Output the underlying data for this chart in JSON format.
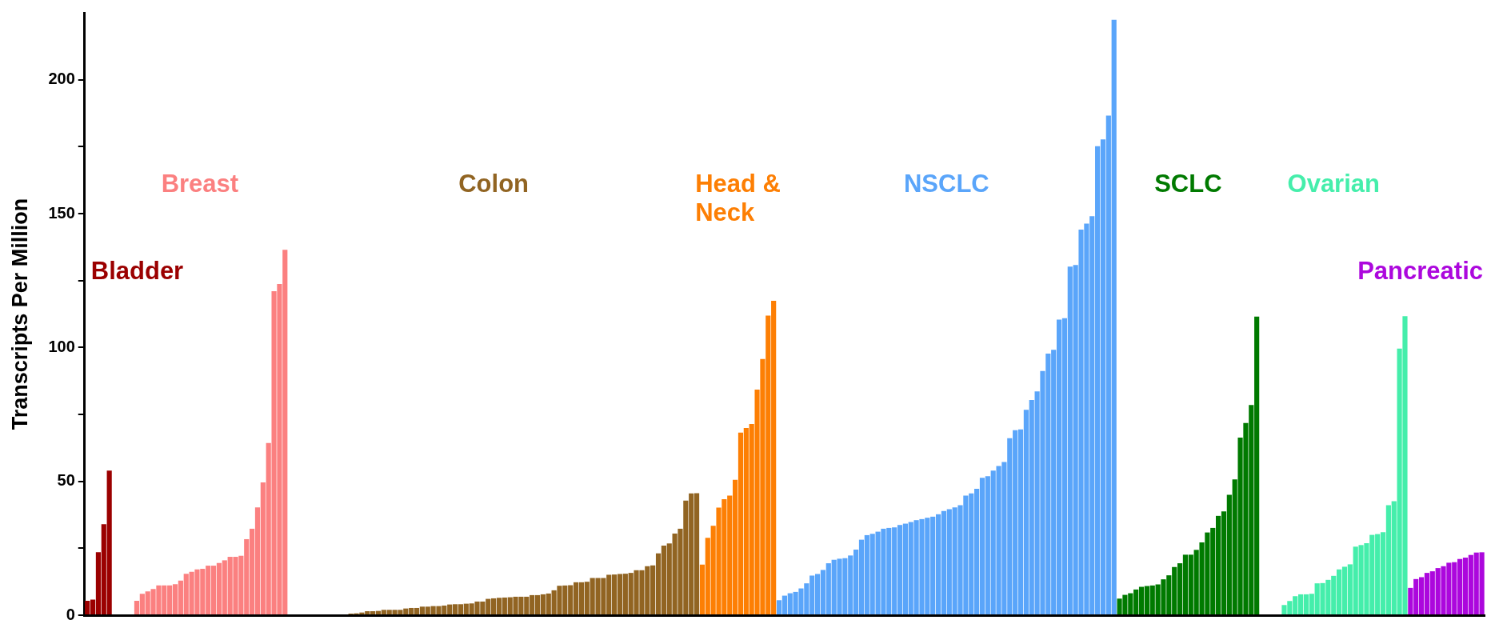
{
  "chart_data": {
    "type": "bar",
    "ylabel": "Transcripts Per Million",
    "tick_labels": "y",
    "legend": false,
    "ylim": [
      0,
      225
    ],
    "yticks": [
      0,
      {
        "value": 25,
        "label": null
      },
      50,
      {
        "value": 75,
        "label": null
      },
      100,
      {
        "value": 125,
        "label": null
      },
      150,
      {
        "value": 175,
        "label": null
      },
      200
    ],
    "categories": [
      null,
      null,
      null,
      null,
      null,
      null,
      null,
      null,
      null,
      null,
      null,
      null,
      null,
      null,
      null,
      null,
      null,
      null,
      null,
      null,
      null,
      null,
      null,
      null,
      null,
      null,
      null,
      null,
      null,
      null,
      null,
      null,
      null,
      null,
      null,
      null,
      null,
      null,
      null,
      null,
      null,
      null,
      null,
      null,
      null,
      null,
      null,
      null,
      null,
      null,
      null,
      null,
      null,
      null,
      null,
      null,
      null,
      null,
      null,
      null,
      null,
      null,
      null,
      null,
      null,
      null,
      null,
      null,
      null,
      null,
      null,
      null,
      null,
      null,
      null,
      null,
      null,
      null,
      null,
      null,
      null,
      null,
      null,
      null,
      null,
      null,
      null,
      null,
      null,
      null,
      null,
      null,
      null,
      null,
      null,
      null,
      null,
      null,
      null,
      null,
      null,
      null,
      null,
      null,
      null,
      null,
      null,
      null,
      null,
      null,
      null,
      null,
      null,
      null,
      null,
      null,
      null,
      null,
      null,
      null,
      null,
      null,
      null,
      null,
      null,
      null,
      null,
      null,
      null,
      null,
      null,
      null,
      null,
      null,
      null,
      null,
      null,
      null,
      null,
      null,
      null,
      null,
      null,
      null,
      null,
      null,
      null,
      null,
      null,
      null,
      null,
      null,
      null,
      null,
      null,
      null,
      null,
      null,
      null,
      null,
      null,
      null,
      null,
      null,
      null,
      null,
      null,
      null,
      null,
      null,
      null,
      null,
      null,
      null,
      null,
      null,
      null,
      null,
      null,
      null,
      null,
      null,
      null,
      null,
      null,
      null,
      null,
      null,
      null,
      null,
      null,
      null,
      null,
      null,
      null,
      null,
      null,
      null,
      null,
      null,
      null,
      null,
      null,
      null,
      null,
      null,
      null,
      null,
      null,
      null,
      null,
      null,
      null,
      null,
      null,
      null,
      null,
      null,
      null,
      null,
      null,
      null,
      null,
      null,
      null,
      null,
      null,
      null,
      null,
      null,
      null,
      null,
      null,
      null,
      null,
      null,
      null,
      null,
      null,
      null,
      null,
      null,
      null,
      null,
      null,
      null,
      null,
      null,
      null,
      null,
      null,
      null,
      null,
      null,
      null
    ],
    "series": [
      {
        "name": "Bladder",
        "color": "#9b0000",
        "values": [
          5.4,
          5.8,
          23.5,
          34,
          54,
          null,
          null,
          null,
          null,
          null,
          null,
          null,
          null,
          null,
          null,
          null,
          null,
          null,
          null,
          null,
          null,
          null,
          null,
          null,
          null,
          null,
          null,
          null,
          null,
          null,
          null,
          null,
          null,
          null,
          null,
          null,
          null,
          null,
          null,
          null,
          null,
          null,
          null,
          null,
          null,
          null,
          null,
          null,
          null,
          null,
          null,
          null,
          null,
          null,
          null,
          null,
          null,
          null,
          null,
          null,
          null,
          null,
          null,
          null,
          null,
          null,
          null,
          null,
          null,
          null,
          null,
          null,
          null,
          null,
          null,
          null,
          null,
          null,
          null,
          null,
          null,
          null,
          null,
          null,
          null,
          null,
          null,
          null,
          null,
          null,
          null,
          null,
          null,
          null,
          null,
          null,
          null,
          null,
          null,
          null,
          null,
          null,
          null,
          null,
          null,
          null,
          null,
          null,
          null,
          null,
          null,
          null,
          null,
          null,
          null,
          null,
          null,
          null,
          null,
          null,
          null,
          null,
          null,
          null,
          null,
          null,
          null,
          null,
          null,
          null,
          null,
          null,
          null,
          null,
          null,
          null,
          null,
          null,
          null,
          null,
          null,
          null,
          null,
          null,
          null,
          null,
          null,
          null,
          null,
          null,
          null,
          null,
          null,
          null,
          null,
          null,
          null,
          null,
          null,
          null,
          null,
          null,
          null,
          null,
          null,
          null,
          null,
          null,
          null,
          null,
          null,
          null,
          null,
          null,
          null,
          null,
          null,
          null,
          null,
          null,
          null,
          null,
          null,
          null,
          null,
          null,
          null,
          null,
          null,
          null,
          null,
          null,
          null,
          null,
          null,
          null,
          null,
          null,
          null,
          null,
          null,
          null,
          null,
          null,
          null,
          null,
          null,
          null,
          null,
          null,
          null,
          null,
          null,
          null,
          null,
          null,
          null,
          null,
          null,
          null,
          null,
          null,
          null,
          null,
          null,
          null,
          null,
          null,
          null,
          null,
          null,
          null,
          null,
          null,
          null,
          null,
          null,
          null,
          null,
          null,
          null,
          null,
          null,
          null,
          null,
          null,
          null,
          null,
          null,
          null,
          null,
          null,
          null,
          null,
          null
        ]
      },
      {
        "name": "Breast",
        "color": "#fb8080",
        "values": [
          null,
          null,
          null,
          null,
          null,
          0,
          0,
          0,
          0.3,
          5.4,
          8,
          8.9,
          9.8,
          11.1,
          11.1,
          11.1,
          11.6,
          12.9,
          15.5,
          16.2,
          17.1,
          17.3,
          18.5,
          18.5,
          19.5,
          20.5,
          21.8,
          21.8,
          22.2,
          28.4,
          32.3,
          40.3,
          49.6,
          64.3,
          121,
          123.7,
          136.5,
          null,
          null,
          null,
          null,
          null,
          null,
          null,
          null,
          null,
          null,
          null,
          null,
          null,
          null,
          null,
          null,
          null,
          null,
          null,
          null,
          null,
          null,
          null,
          null,
          null,
          null,
          null,
          null,
          null,
          null,
          null,
          null,
          null,
          null,
          null,
          null,
          null,
          null,
          null,
          null,
          null,
          null,
          null,
          null,
          null,
          null,
          null,
          null,
          null,
          null,
          null,
          null,
          null,
          null,
          null,
          null,
          null,
          null,
          null,
          null,
          null,
          null,
          null,
          null,
          null,
          null,
          null,
          null,
          null,
          null,
          null,
          null,
          null,
          null,
          null,
          null,
          null,
          null,
          null,
          null,
          null,
          null,
          null,
          null,
          null,
          null,
          null,
          null,
          null,
          null,
          null,
          null,
          null,
          null,
          null,
          null,
          null,
          null,
          null,
          null,
          null,
          null,
          null,
          null,
          null,
          null,
          null,
          null,
          null,
          null,
          null,
          null,
          null,
          null,
          null,
          null,
          null,
          null,
          null,
          null,
          null,
          null,
          null,
          null,
          null,
          null,
          null,
          null,
          null,
          null,
          null,
          null,
          null,
          null,
          null,
          null,
          null,
          null,
          null,
          null,
          null,
          null,
          null,
          null,
          null,
          null,
          null,
          null,
          null,
          null,
          null,
          null,
          null,
          null,
          null,
          null,
          null,
          null,
          null,
          null,
          null,
          null,
          null,
          null,
          null,
          null,
          null,
          null,
          null,
          null,
          null,
          null,
          null,
          null,
          null,
          null,
          null,
          null,
          null,
          null,
          null,
          null,
          null,
          null,
          null,
          null,
          null,
          null,
          null,
          null,
          null,
          null,
          null,
          null,
          null,
          null,
          null,
          null,
          null,
          null,
          null,
          null,
          null,
          null,
          null,
          null,
          null,
          null,
          null,
          null,
          null,
          null,
          null,
          null,
          null,
          null,
          null,
          null
        ]
      },
      {
        "name": "Colon",
        "color": "#916422",
        "values": [
          null,
          null,
          null,
          null,
          null,
          null,
          null,
          null,
          null,
          null,
          null,
          null,
          null,
          null,
          null,
          null,
          null,
          null,
          null,
          null,
          null,
          null,
          null,
          null,
          null,
          null,
          null,
          null,
          null,
          null,
          null,
          null,
          null,
          null,
          null,
          null,
          null,
          0,
          0,
          0,
          0,
          0,
          0,
          0,
          0,
          0,
          null,
          null,
          0.6,
          0.7,
          1,
          1.5,
          1.5,
          1.6,
          2,
          2,
          2,
          2,
          2.5,
          2.7,
          2.7,
          3.2,
          3.2,
          3.4,
          3.4,
          3.6,
          4,
          4.1,
          4.1,
          4.3,
          4.4,
          5.1,
          5.1,
          6.1,
          6.3,
          6.5,
          6.6,
          6.7,
          6.9,
          6.9,
          6.9,
          7.5,
          7.5,
          7.8,
          8.1,
          9.3,
          11,
          11.1,
          11.2,
          12.3,
          12.3,
          12.5,
          13.9,
          13.9,
          13.9,
          15.1,
          15.2,
          15.4,
          15.5,
          15.8,
          16.8,
          16.8,
          18.3,
          18.6,
          23.1,
          26,
          26.8,
          30.5,
          32.3,
          42.8,
          45.5,
          45.6,
          null,
          null,
          null,
          null,
          null,
          null,
          null,
          null,
          null,
          null,
          null,
          null,
          null,
          null,
          null,
          null,
          null,
          null,
          null,
          null,
          null,
          null,
          null,
          null,
          null,
          null,
          null,
          null,
          null,
          null,
          null,
          null,
          null,
          null,
          null,
          null,
          null,
          null,
          null,
          null,
          null,
          null,
          null,
          null,
          null,
          null,
          null,
          null,
          null,
          null,
          null,
          null,
          null,
          null,
          null,
          null,
          null,
          null,
          null,
          null,
          null,
          null,
          null,
          null,
          null,
          null,
          null,
          null,
          null,
          null,
          null,
          null,
          null,
          null,
          null,
          null,
          null,
          null,
          null,
          null,
          null,
          null,
          null,
          null,
          null,
          null,
          null,
          null,
          null,
          null,
          null,
          null,
          null,
          null,
          null,
          null,
          null,
          null,
          null,
          null,
          null,
          null,
          null,
          null,
          null,
          null,
          null,
          null,
          null,
          null,
          null,
          null,
          null,
          null,
          null,
          null,
          null,
          null,
          null,
          null,
          null,
          null,
          null,
          null,
          null,
          null,
          null,
          null,
          null,
          null,
          null,
          null,
          null,
          null,
          null,
          null,
          null,
          null,
          null,
          null,
          null,
          null,
          null
        ]
      },
      {
        "name": "Head & Neck",
        "color": "#fd7f04",
        "values": [
          null,
          null,
          null,
          null,
          null,
          null,
          null,
          null,
          null,
          null,
          null,
          null,
          null,
          null,
          null,
          null,
          null,
          null,
          null,
          null,
          null,
          null,
          null,
          null,
          null,
          null,
          null,
          null,
          null,
          null,
          null,
          null,
          null,
          null,
          null,
          null,
          null,
          null,
          null,
          null,
          null,
          null,
          null,
          null,
          null,
          null,
          null,
          null,
          null,
          null,
          null,
          null,
          null,
          null,
          null,
          null,
          null,
          null,
          null,
          null,
          null,
          null,
          null,
          null,
          null,
          null,
          null,
          null,
          null,
          null,
          null,
          null,
          null,
          null,
          null,
          null,
          null,
          null,
          null,
          null,
          null,
          null,
          null,
          null,
          null,
          null,
          null,
          null,
          null,
          null,
          null,
          null,
          null,
          null,
          null,
          null,
          null,
          null,
          null,
          null,
          null,
          null,
          null,
          null,
          null,
          null,
          null,
          null,
          null,
          null,
          null,
          null,
          18.9,
          28.9,
          33.4,
          40.2,
          43.3,
          44.7,
          50.6,
          68.2,
          69.9,
          71.4,
          84.3,
          95.7,
          111.9,
          117.4,
          null,
          null,
          null,
          null,
          null,
          null,
          null,
          null,
          null,
          null,
          null,
          null,
          null,
          null,
          null,
          null,
          null,
          null,
          null,
          null,
          null,
          null,
          null,
          null,
          null,
          null,
          null,
          null,
          null,
          null,
          null,
          null,
          null,
          null,
          null,
          null,
          null,
          null,
          null,
          null,
          null,
          null,
          null,
          null,
          null,
          null,
          null,
          null,
          null,
          null,
          null,
          null,
          null,
          null,
          null,
          null,
          null,
          null,
          null,
          null,
          null,
          null,
          null,
          null,
          null,
          null,
          null,
          null,
          null,
          null,
          null,
          null,
          null,
          null,
          null,
          null,
          null,
          null,
          null,
          null,
          null,
          null,
          null,
          null,
          null,
          null,
          null,
          null,
          null,
          null,
          null,
          null,
          null,
          null,
          null,
          null,
          null,
          null,
          null,
          null,
          null,
          null,
          null,
          null,
          null,
          null,
          null,
          null,
          null,
          null,
          null,
          null,
          null,
          null,
          null,
          null,
          null,
          null,
          null,
          null,
          null,
          null,
          null,
          null,
          null,
          null,
          null,
          null,
          null
        ]
      },
      {
        "name": "NSCLC",
        "color": "#5aa5fa",
        "values": [
          null,
          null,
          null,
          null,
          null,
          null,
          null,
          null,
          null,
          null,
          null,
          null,
          null,
          null,
          null,
          null,
          null,
          null,
          null,
          null,
          null,
          null,
          null,
          null,
          null,
          null,
          null,
          null,
          null,
          null,
          null,
          null,
          null,
          null,
          null,
          null,
          null,
          null,
          null,
          null,
          null,
          null,
          null,
          null,
          null,
          null,
          null,
          null,
          null,
          null,
          null,
          null,
          null,
          null,
          null,
          null,
          null,
          null,
          null,
          null,
          null,
          null,
          null,
          null,
          null,
          null,
          null,
          null,
          null,
          null,
          null,
          null,
          null,
          null,
          null,
          null,
          null,
          null,
          null,
          null,
          null,
          null,
          null,
          null,
          null,
          null,
          null,
          null,
          null,
          null,
          null,
          null,
          null,
          null,
          null,
          null,
          null,
          null,
          null,
          null,
          null,
          null,
          null,
          null,
          null,
          null,
          null,
          null,
          null,
          null,
          null,
          null,
          null,
          null,
          null,
          null,
          null,
          null,
          null,
          null,
          null,
          null,
          null,
          null,
          null,
          null,
          5.6,
          7.3,
          8.2,
          8.7,
          10,
          11.9,
          14.8,
          15.4,
          16.9,
          19.4,
          20.7,
          21.1,
          21.3,
          22.3,
          24.5,
          28.2,
          29.9,
          30.4,
          31.2,
          32.3,
          32.6,
          32.8,
          33.7,
          34.2,
          34.8,
          35.5,
          35.9,
          36.4,
          36.8,
          37.7,
          38.9,
          39.6,
          40.3,
          41.1,
          44.7,
          45.5,
          47.2,
          51.3,
          51.9,
          54,
          55.7,
          57.2,
          66.1,
          69.1,
          69.4,
          76.7,
          80.4,
          83.6,
          91.2,
          97.7,
          99.1,
          110.4,
          110.9,
          130.2,
          130.8,
          144,
          146.3,
          149,
          175.2,
          177.7,
          186.6,
          222.4,
          null,
          null,
          null,
          null,
          null,
          null,
          null,
          null,
          null,
          null,
          null,
          null,
          null,
          null,
          null,
          null,
          null,
          null,
          null,
          null,
          null,
          null,
          null,
          null,
          null,
          null,
          null,
          null,
          null,
          null,
          null,
          null,
          null,
          null,
          null,
          null,
          null,
          null,
          null,
          null,
          null,
          null,
          null,
          null,
          null,
          null,
          null,
          null,
          null,
          null,
          null,
          null,
          null,
          null,
          null,
          null,
          null,
          null,
          null,
          null,
          null,
          null,
          null,
          null,
          null,
          null,
          null
        ]
      },
      {
        "name": "SCLC",
        "color": "#007a00",
        "values": [
          null,
          null,
          null,
          null,
          null,
          null,
          null,
          null,
          null,
          null,
          null,
          null,
          null,
          null,
          null,
          null,
          null,
          null,
          null,
          null,
          null,
          null,
          null,
          null,
          null,
          null,
          null,
          null,
          null,
          null,
          null,
          null,
          null,
          null,
          null,
          null,
          null,
          null,
          null,
          null,
          null,
          null,
          null,
          null,
          null,
          null,
          null,
          null,
          null,
          null,
          null,
          null,
          null,
          null,
          null,
          null,
          null,
          null,
          null,
          null,
          null,
          null,
          null,
          null,
          null,
          null,
          null,
          null,
          null,
          null,
          null,
          null,
          null,
          null,
          null,
          null,
          null,
          null,
          null,
          null,
          null,
          null,
          null,
          null,
          null,
          null,
          null,
          null,
          null,
          null,
          null,
          null,
          null,
          null,
          null,
          null,
          null,
          null,
          null,
          null,
          null,
          null,
          null,
          null,
          null,
          null,
          null,
          null,
          null,
          null,
          null,
          null,
          null,
          null,
          null,
          null,
          null,
          null,
          null,
          null,
          null,
          null,
          null,
          null,
          null,
          null,
          null,
          null,
          null,
          null,
          null,
          null,
          null,
          null,
          null,
          null,
          null,
          null,
          null,
          null,
          null,
          null,
          null,
          null,
          null,
          null,
          null,
          null,
          null,
          null,
          null,
          null,
          null,
          null,
          null,
          null,
          null,
          null,
          null,
          null,
          null,
          null,
          null,
          null,
          null,
          null,
          null,
          null,
          null,
          null,
          null,
          null,
          null,
          null,
          null,
          null,
          null,
          null,
          null,
          null,
          null,
          null,
          null,
          null,
          null,
          null,
          null,
          null,
          6.2,
          7.6,
          8.2,
          9.6,
          10.6,
          10.9,
          11.1,
          11.5,
          13.4,
          14.9,
          18,
          19.4,
          22.6,
          22.6,
          24.4,
          27.2,
          30.9,
          32.6,
          37.1,
          38.8,
          45,
          50.7,
          66.3,
          71.8,
          78.5,
          111.5,
          null,
          null,
          null,
          null,
          null,
          null,
          null,
          null,
          null,
          null,
          null,
          null,
          null,
          null,
          null,
          null,
          null,
          null,
          null,
          null,
          null,
          null,
          null,
          null,
          null,
          null,
          null,
          null,
          null,
          null,
          null,
          null,
          null,
          null,
          null,
          null,
          null,
          null,
          null,
          null,
          null
        ]
      },
      {
        "name": "Ovarian",
        "color": "#45eeab",
        "values": [
          null,
          null,
          null,
          null,
          null,
          null,
          null,
          null,
          null,
          null,
          null,
          null,
          null,
          null,
          null,
          null,
          null,
          null,
          null,
          null,
          null,
          null,
          null,
          null,
          null,
          null,
          null,
          null,
          null,
          null,
          null,
          null,
          null,
          null,
          null,
          null,
          null,
          null,
          null,
          null,
          null,
          null,
          null,
          null,
          null,
          null,
          null,
          null,
          null,
          null,
          null,
          null,
          null,
          null,
          null,
          null,
          null,
          null,
          null,
          null,
          null,
          null,
          null,
          null,
          null,
          null,
          null,
          null,
          null,
          null,
          null,
          null,
          null,
          null,
          null,
          null,
          null,
          null,
          null,
          null,
          null,
          null,
          null,
          null,
          null,
          null,
          null,
          null,
          null,
          null,
          null,
          null,
          null,
          null,
          null,
          null,
          null,
          null,
          null,
          null,
          null,
          null,
          null,
          null,
          null,
          null,
          null,
          null,
          null,
          null,
          null,
          null,
          null,
          null,
          null,
          null,
          null,
          null,
          null,
          null,
          null,
          null,
          null,
          null,
          null,
          null,
          null,
          null,
          null,
          null,
          null,
          null,
          null,
          null,
          null,
          null,
          null,
          null,
          null,
          null,
          null,
          null,
          null,
          null,
          null,
          null,
          null,
          null,
          null,
          null,
          null,
          null,
          null,
          null,
          null,
          null,
          null,
          null,
          null,
          null,
          null,
          null,
          null,
          null,
          null,
          null,
          null,
          null,
          null,
          null,
          null,
          null,
          null,
          null,
          null,
          null,
          null,
          null,
          null,
          null,
          null,
          null,
          null,
          null,
          null,
          null,
          null,
          null,
          null,
          null,
          null,
          null,
          null,
          null,
          null,
          null,
          null,
          null,
          null,
          null,
          null,
          null,
          null,
          null,
          null,
          null,
          null,
          null,
          null,
          null,
          null,
          null,
          null,
          null,
          0,
          0,
          0.3,
          null,
          3.8,
          5.3,
          7.1,
          7.8,
          7.8,
          8,
          11.9,
          12,
          13.2,
          14.7,
          17.1,
          18.1,
          19,
          25.6,
          26.2,
          26.9,
          30,
          30.3,
          31,
          41.1,
          42.6,
          99.6,
          111.7,
          null,
          null,
          null,
          null,
          null,
          null,
          null,
          null,
          null,
          null,
          null,
          null,
          null,
          null
        ]
      },
      {
        "name": "Pancreatic",
        "color": "#ac07dd",
        "values": [
          null,
          null,
          null,
          null,
          null,
          null,
          null,
          null,
          null,
          null,
          null,
          null,
          null,
          null,
          null,
          null,
          null,
          null,
          null,
          null,
          null,
          null,
          null,
          null,
          null,
          null,
          null,
          null,
          null,
          null,
          null,
          null,
          null,
          null,
          null,
          null,
          null,
          null,
          null,
          null,
          null,
          null,
          null,
          null,
          null,
          null,
          null,
          null,
          null,
          null,
          null,
          null,
          null,
          null,
          null,
          null,
          null,
          null,
          null,
          null,
          null,
          null,
          null,
          null,
          null,
          null,
          null,
          null,
          null,
          null,
          null,
          null,
          null,
          null,
          null,
          null,
          null,
          null,
          null,
          null,
          null,
          null,
          null,
          null,
          null,
          null,
          null,
          null,
          null,
          null,
          null,
          null,
          null,
          null,
          null,
          null,
          null,
          null,
          null,
          null,
          null,
          null,
          null,
          null,
          null,
          null,
          null,
          null,
          null,
          null,
          null,
          null,
          null,
          null,
          null,
          null,
          null,
          null,
          null,
          null,
          null,
          null,
          null,
          null,
          null,
          null,
          null,
          null,
          null,
          null,
          null,
          null,
          null,
          null,
          null,
          null,
          null,
          null,
          null,
          null,
          null,
          null,
          null,
          null,
          null,
          null,
          null,
          null,
          null,
          null,
          null,
          null,
          null,
          null,
          null,
          null,
          null,
          null,
          null,
          null,
          null,
          null,
          null,
          null,
          null,
          null,
          null,
          null,
          null,
          null,
          null,
          null,
          null,
          null,
          null,
          null,
          null,
          null,
          null,
          null,
          null,
          null,
          null,
          null,
          null,
          null,
          null,
          null,
          null,
          null,
          null,
          null,
          null,
          null,
          null,
          null,
          null,
          null,
          null,
          null,
          null,
          null,
          null,
          null,
          null,
          null,
          null,
          null,
          null,
          null,
          null,
          null,
          null,
          null,
          null,
          null,
          null,
          null,
          null,
          null,
          null,
          null,
          null,
          null,
          null,
          null,
          null,
          null,
          null,
          null,
          null,
          null,
          null,
          null,
          null,
          null,
          null,
          null,
          null,
          null,
          null,
          10.2,
          13.5,
          14.2,
          15.8,
          16.4,
          17.6,
          18.3,
          19.6,
          19.8,
          21,
          21.5,
          22.5,
          23.4,
          23.5
        ]
      }
    ]
  }
}
